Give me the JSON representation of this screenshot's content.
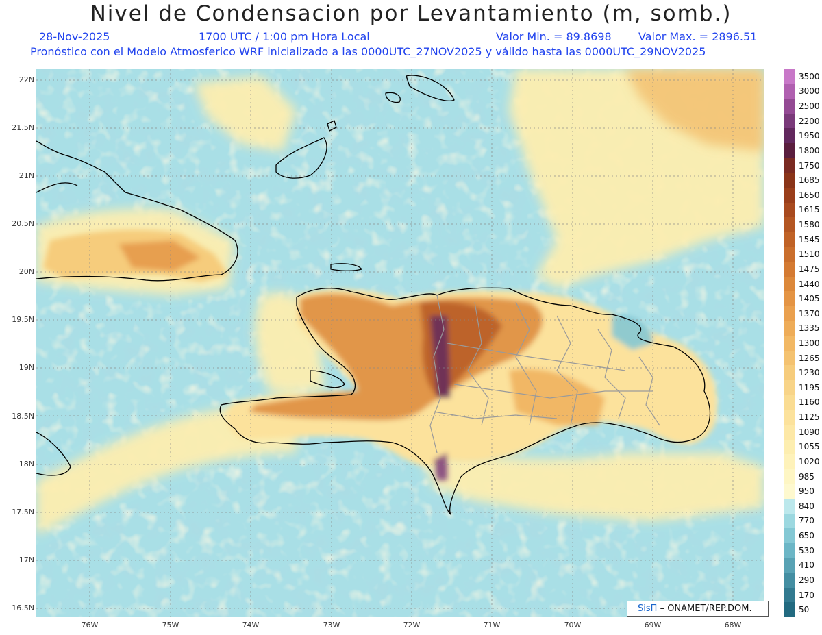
{
  "header": {
    "title": "Nivel de Condensacion por Levantamiento (m, somb.)",
    "date": "28-Nov-2025",
    "time": "1700 UTC / 1:00 pm Hora Local",
    "min_label": "Valor Min. = 89.8698",
    "max_label": "Valor Max. = 2896.51",
    "forecast_line": "Pronóstico con el Modelo Atmosferico WRF inicializado a las 0000UTC_27NOV2025 y válido hasta las  0000UTC_29NOV2025"
  },
  "map": {
    "lat_labels": [
      "22N",
      "21.5N",
      "21N",
      "20.5N",
      "20N",
      "19.5N",
      "19N",
      "18.5N",
      "18N",
      "17.5N",
      "17N",
      "16.5N"
    ],
    "lon_labels": [
      "76W",
      "75W",
      "74W",
      "73W",
      "72W",
      "71W",
      "70W",
      "69W",
      "68W"
    ]
  },
  "legend": {
    "levels": [
      "3500",
      "3000",
      "2500",
      "2200",
      "1950",
      "1800",
      "1750",
      "1685",
      "1650",
      "1615",
      "1580",
      "1545",
      "1510",
      "1475",
      "1440",
      "1405",
      "1370",
      "1335",
      "1300",
      "1265",
      "1230",
      "1195",
      "1160",
      "1125",
      "1090",
      "1055",
      "1020",
      "985",
      "950",
      "840",
      "770",
      "650",
      "530",
      "410",
      "290",
      "170",
      "50"
    ],
    "colors": [
      "#c878c8",
      "#b060b0",
      "#944a94",
      "#7a3a7a",
      "#62285e",
      "#5a1e3e",
      "#7a2a22",
      "#8a3418",
      "#9a3e1a",
      "#a84a1e",
      "#b45622",
      "#c06226",
      "#ca6e2c",
      "#d47a32",
      "#dc883a",
      "#e49444",
      "#eaa04e",
      "#eeac58",
      "#f2b864",
      "#f4c270",
      "#f6cc7c",
      "#f8d488",
      "#fadc92",
      "#fce29c",
      "#fde8a6",
      "#fdeeb0",
      "#fef2ba",
      "#fef6c4",
      "#fef9cf",
      "#bce8ec",
      "#9cd8e0",
      "#84c8d4",
      "#6cb6c6",
      "#58a2b4",
      "#448ea2",
      "#327a90",
      "#226a80"
    ]
  },
  "credit": {
    "logo_text": "SisΠ",
    "org_text": "– ONAMET/REP.DOM."
  }
}
